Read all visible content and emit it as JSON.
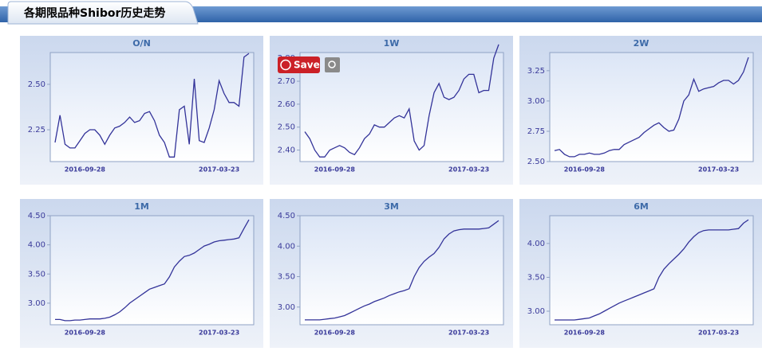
{
  "header": {
    "title": "各期限品种Shibor历史走势"
  },
  "overlay": {
    "save": "Save"
  },
  "chart_data": [
    {
      "type": "line",
      "title": "O/N",
      "color": "#333399",
      "categories": [
        null,
        null,
        null,
        null,
        null,
        null,
        "2016-09-28",
        null,
        null,
        null,
        null,
        null,
        null,
        null,
        null,
        null,
        null,
        null,
        null,
        null,
        null,
        null,
        null,
        null,
        null,
        null,
        null,
        null,
        null,
        null,
        null,
        null,
        null,
        "2017-03-23",
        null,
        null,
        null,
        null,
        null,
        null
      ],
      "values": [
        2.18,
        2.33,
        2.17,
        2.15,
        2.15,
        2.19,
        2.23,
        2.25,
        2.25,
        2.22,
        2.17,
        2.22,
        2.26,
        2.27,
        2.29,
        2.32,
        2.29,
        2.3,
        2.34,
        2.35,
        2.3,
        2.22,
        2.18,
        2.1,
        2.1,
        2.36,
        2.38,
        2.17,
        2.53,
        2.19,
        2.18,
        2.26,
        2.36,
        2.52,
        2.45,
        2.4,
        2.4,
        2.38,
        2.65,
        2.67
      ],
      "ylim": [
        2.075,
        2.675
      ],
      "yticks": [
        {
          "value": 2.25,
          "label": "2.25"
        },
        {
          "value": 2.5,
          "label": "2.50"
        }
      ]
    },
    {
      "type": "line",
      "title": "1W",
      "color": "#333399",
      "categories": [
        null,
        null,
        null,
        null,
        null,
        null,
        "2016-09-28",
        null,
        null,
        null,
        null,
        null,
        null,
        null,
        null,
        null,
        null,
        null,
        null,
        null,
        null,
        null,
        null,
        null,
        null,
        null,
        null,
        null,
        null,
        null,
        null,
        null,
        null,
        "2017-03-23",
        null,
        null,
        null,
        null,
        null,
        null
      ],
      "values": [
        2.48,
        2.45,
        2.4,
        2.37,
        2.37,
        2.4,
        2.41,
        2.42,
        2.41,
        2.39,
        2.38,
        2.41,
        2.45,
        2.47,
        2.51,
        2.5,
        2.5,
        2.52,
        2.54,
        2.55,
        2.54,
        2.58,
        2.44,
        2.4,
        2.42,
        2.55,
        2.65,
        2.69,
        2.63,
        2.62,
        2.63,
        2.66,
        2.71,
        2.73,
        2.73,
        2.65,
        2.66,
        2.66,
        2.8,
        2.86
      ],
      "ylim": [
        2.35,
        2.825
      ],
      "yticks": [
        {
          "value": 2.4,
          "label": "2.40"
        },
        {
          "value": 2.5,
          "label": "2.50"
        },
        {
          "value": 2.6,
          "label": "2.60"
        },
        {
          "value": 2.7,
          "label": "2.70"
        },
        {
          "value": 2.8,
          "label": "2.80"
        }
      ]
    },
    {
      "type": "line",
      "title": "2W",
      "color": "#333399",
      "categories": [
        null,
        null,
        null,
        null,
        null,
        null,
        "2016-09-28",
        null,
        null,
        null,
        null,
        null,
        null,
        null,
        null,
        null,
        null,
        null,
        null,
        null,
        null,
        null,
        null,
        null,
        null,
        null,
        null,
        null,
        null,
        null,
        null,
        null,
        null,
        "2017-03-23",
        null,
        null,
        null,
        null,
        null,
        null
      ],
      "values": [
        2.59,
        2.6,
        2.56,
        2.54,
        2.54,
        2.56,
        2.56,
        2.57,
        2.56,
        2.56,
        2.57,
        2.59,
        2.6,
        2.6,
        2.64,
        2.66,
        2.68,
        2.7,
        2.74,
        2.77,
        2.8,
        2.82,
        2.78,
        2.75,
        2.76,
        2.85,
        3.0,
        3.05,
        3.18,
        3.08,
        3.1,
        3.11,
        3.12,
        3.15,
        3.17,
        3.17,
        3.14,
        3.17,
        3.24,
        3.36
      ],
      "ylim": [
        2.5,
        3.4
      ],
      "yticks": [
        {
          "value": 2.5,
          "label": "2.50"
        },
        {
          "value": 2.75,
          "label": "2.75"
        },
        {
          "value": 3,
          "label": "3.00"
        },
        {
          "value": 3.25,
          "label": "3.25"
        }
      ]
    },
    {
      "type": "line",
      "title": "1M",
      "color": "#333399",
      "categories": [
        null,
        null,
        null,
        null,
        null,
        null,
        "2016-09-28",
        null,
        null,
        null,
        null,
        null,
        null,
        null,
        null,
        null,
        null,
        null,
        null,
        null,
        null,
        null,
        null,
        null,
        null,
        null,
        null,
        null,
        null,
        null,
        null,
        null,
        null,
        "2017-03-23",
        null,
        null,
        null,
        null,
        null,
        null
      ],
      "values": [
        2.72,
        2.72,
        2.7,
        2.7,
        2.71,
        2.71,
        2.72,
        2.73,
        2.73,
        2.73,
        2.74,
        2.76,
        2.8,
        2.85,
        2.92,
        3.0,
        3.06,
        3.12,
        3.18,
        3.24,
        3.27,
        3.3,
        3.33,
        3.45,
        3.62,
        3.72,
        3.8,
        3.82,
        3.86,
        3.92,
        3.98,
        4.01,
        4.05,
        4.07,
        4.08,
        4.09,
        4.1,
        4.12,
        4.28,
        4.43
      ],
      "ylim": [
        2.63,
        4.5
      ],
      "yticks": [
        {
          "value": 3,
          "label": "3.00"
        },
        {
          "value": 3.5,
          "label": "3.50"
        },
        {
          "value": 4,
          "label": "4.00"
        },
        {
          "value": 4.5,
          "label": "4.50"
        }
      ]
    },
    {
      "type": "line",
      "title": "3M",
      "color": "#333399",
      "categories": [
        null,
        null,
        null,
        null,
        null,
        null,
        "2016-09-28",
        null,
        null,
        null,
        null,
        null,
        null,
        null,
        null,
        null,
        null,
        null,
        null,
        null,
        null,
        null,
        null,
        null,
        null,
        null,
        null,
        null,
        null,
        null,
        null,
        null,
        null,
        "2017-03-23",
        null,
        null,
        null,
        null,
        null,
        null
      ],
      "values": [
        2.79,
        2.79,
        2.79,
        2.79,
        2.8,
        2.81,
        2.82,
        2.84,
        2.86,
        2.9,
        2.94,
        2.98,
        3.02,
        3.05,
        3.09,
        3.12,
        3.15,
        3.19,
        3.22,
        3.25,
        3.27,
        3.3,
        3.5,
        3.65,
        3.75,
        3.82,
        3.88,
        3.98,
        4.12,
        4.2,
        4.25,
        4.27,
        4.28,
        4.28,
        4.28,
        4.28,
        4.29,
        4.3,
        4.36,
        4.42
      ],
      "ylim": [
        2.71,
        4.5
      ],
      "yticks": [
        {
          "value": 3,
          "label": "3.00"
        },
        {
          "value": 3.5,
          "label": "3.50"
        },
        {
          "value": 4,
          "label": "4.00"
        },
        {
          "value": 4.5,
          "label": "4.50"
        }
      ]
    },
    {
      "type": "line",
      "title": "6M",
      "color": "#333399",
      "categories": [
        null,
        null,
        null,
        null,
        null,
        null,
        "2016-09-28",
        null,
        null,
        null,
        null,
        null,
        null,
        null,
        null,
        null,
        null,
        null,
        null,
        null,
        null,
        null,
        null,
        null,
        null,
        null,
        null,
        null,
        null,
        null,
        null,
        null,
        null,
        "2017-03-23",
        null,
        null,
        null,
        null,
        null,
        null
      ],
      "values": [
        2.87,
        2.87,
        2.87,
        2.87,
        2.87,
        2.88,
        2.89,
        2.9,
        2.93,
        2.96,
        3.0,
        3.04,
        3.08,
        3.12,
        3.15,
        3.18,
        3.21,
        3.24,
        3.27,
        3.3,
        3.33,
        3.5,
        3.62,
        3.7,
        3.77,
        3.84,
        3.92,
        4.02,
        4.1,
        4.16,
        4.19,
        4.2,
        4.2,
        4.2,
        4.2,
        4.2,
        4.21,
        4.22,
        4.3,
        4.35
      ],
      "ylim": [
        2.8,
        4.41
      ],
      "yticks": [
        {
          "value": 3,
          "label": "3.00"
        },
        {
          "value": 3.5,
          "label": "3.50"
        },
        {
          "value": 4,
          "label": "4.00"
        }
      ]
    }
  ]
}
